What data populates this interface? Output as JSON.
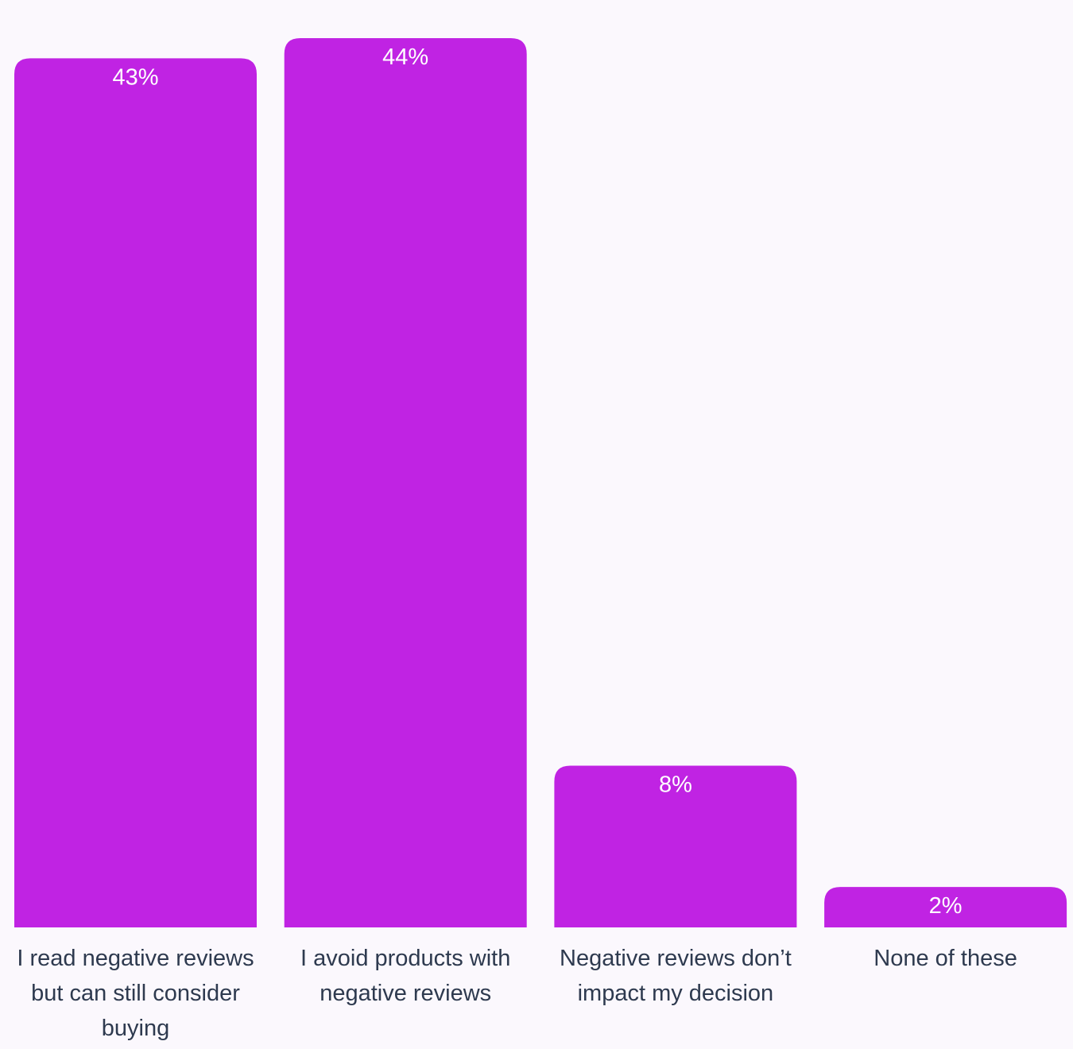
{
  "chart_data": {
    "type": "bar",
    "categories": [
      [
        "I read negative reviews",
        "but can still consider",
        "buying"
      ],
      [
        "I avoid products with",
        "negative reviews"
      ],
      [
        "Negative reviews don’t",
        "impact my decision"
      ],
      [
        "None of these"
      ]
    ],
    "values": [
      43,
      44,
      8,
      2
    ],
    "value_labels": [
      "43%",
      "44%",
      "8%",
      "2%"
    ],
    "ylim": [
      0,
      44
    ],
    "grid": false,
    "bar_color": "#c023e3",
    "label_color": "#2e3a4f",
    "value_label_color": "#ffffff"
  }
}
